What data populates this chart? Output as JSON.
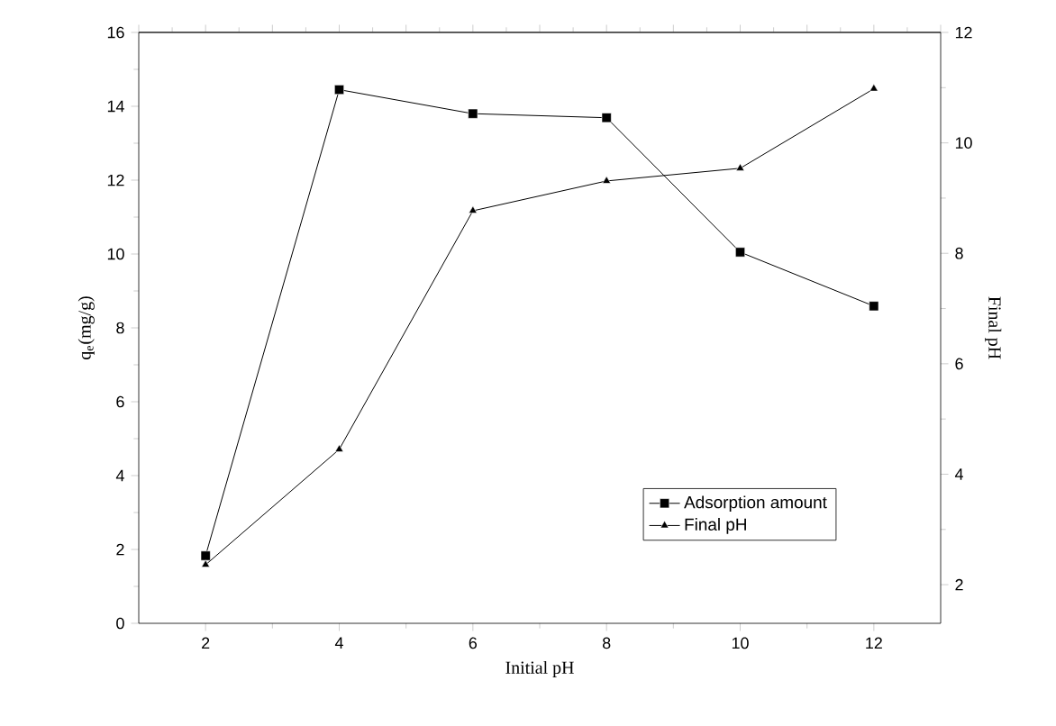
{
  "chart_data": {
    "type": "line",
    "xlabel": "Initial pH",
    "ylabel": "q$_{e}$(mg/g)",
    "y2label": "Final pH",
    "x": [
      2,
      4,
      6,
      8,
      10,
      12
    ],
    "series": [
      {
        "name": "Adsorption amount",
        "color": "#000000",
        "marker": "square",
        "values": [
          1.83,
          14.45,
          13.8,
          13.69,
          10.05,
          8.59
        ]
      },
      {
        "name": "Final pH",
        "color": "#000000",
        "marker": "triangle",
        "axis": "y2",
        "values": [
          2.36,
          4.45,
          8.77,
          9.31,
          9.54,
          10.98
        ]
      }
    ],
    "xlim": [
      1,
      13
    ],
    "xticks": [
      2,
      4,
      6,
      8,
      10,
      12
    ],
    "ylim": [
      0,
      16
    ],
    "yticks": [
      0,
      2,
      4,
      6,
      8,
      10,
      12,
      14,
      16
    ],
    "y2lim": [
      1.3,
      12
    ],
    "y2ticks": [
      2,
      4,
      6,
      8,
      10,
      12
    ],
    "legend": "bottom right",
    "grid": false,
    "line_style": "solid"
  }
}
